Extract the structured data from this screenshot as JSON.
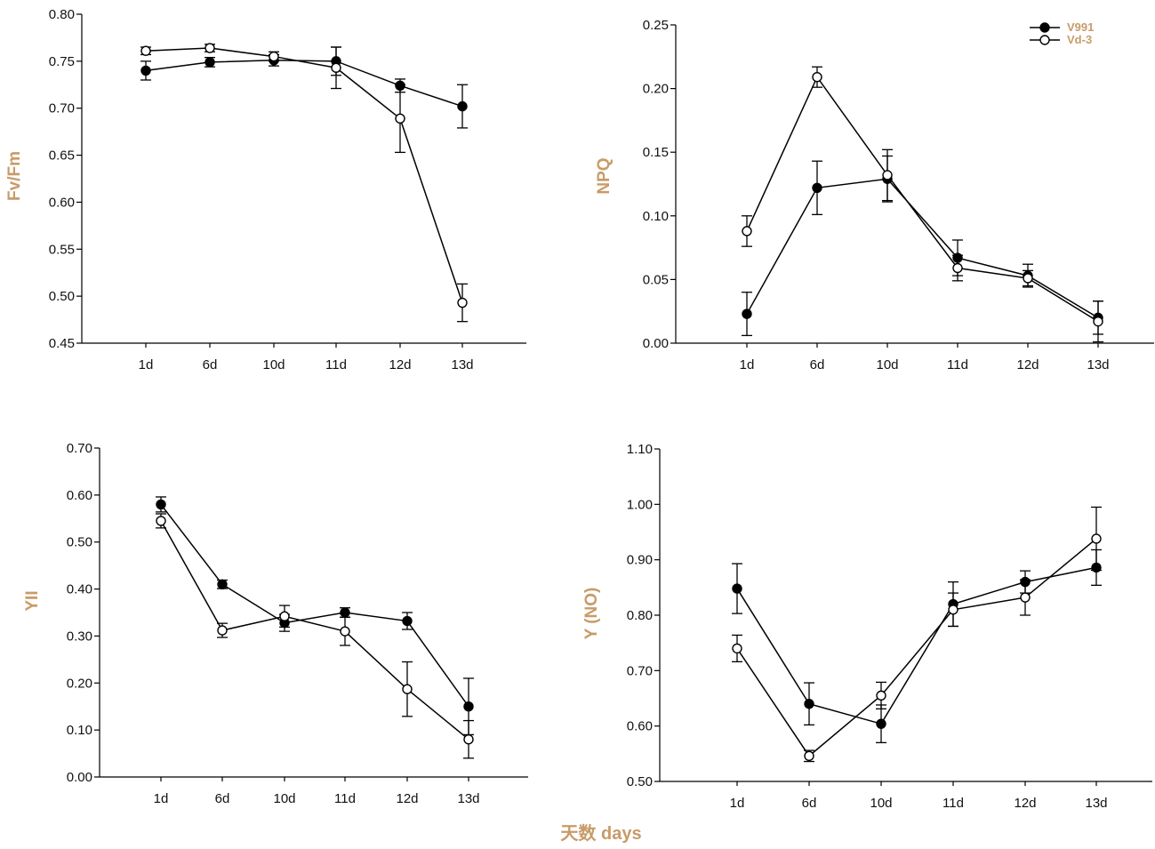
{
  "colors": {
    "label": "#c89b68",
    "line": "#000000"
  },
  "common_xlabel": "天数  days",
  "legend": {
    "items": [
      "V991",
      "Vd-3"
    ]
  },
  "chart_data": [
    {
      "type": "line",
      "ylabel": "Fv/Fm",
      "ylim": [
        0.45,
        0.8
      ],
      "yticks": [
        "0.45",
        "0.50",
        "0.55",
        "0.60",
        "0.65",
        "0.70",
        "0.75",
        "0.80"
      ],
      "categories": [
        "1d",
        "6d",
        "10d",
        "11d",
        "12d",
        "13d"
      ],
      "series": [
        {
          "name": "V991",
          "values": [
            0.74,
            0.749,
            0.751,
            0.75,
            0.724,
            0.702
          ],
          "errors": [
            0.01,
            0.005,
            0.006,
            0.015,
            0.007,
            0.023
          ]
        },
        {
          "name": "Vd-3",
          "values": [
            0.761,
            0.764,
            0.755,
            0.743,
            0.689,
            0.493
          ],
          "errors": [
            0.004,
            0.004,
            0.005,
            0.022,
            0.036,
            0.02
          ]
        }
      ]
    },
    {
      "type": "line",
      "ylabel": "NPQ",
      "ylim": [
        0.0,
        0.25
      ],
      "yticks": [
        "0.00",
        "0.05",
        "0.10",
        "0.15",
        "0.20",
        "0.25"
      ],
      "categories": [
        "1d",
        "6d",
        "10d",
        "11d",
        "12d",
        "13d"
      ],
      "series": [
        {
          "name": "V991",
          "values": [
            0.023,
            0.122,
            0.129,
            0.067,
            0.053,
            0.02
          ],
          "errors": [
            0.017,
            0.021,
            0.018,
            0.014,
            0.009,
            0.013
          ]
        },
        {
          "name": "Vd-3",
          "values": [
            0.088,
            0.209,
            0.132,
            0.059,
            0.051,
            0.017
          ],
          "errors": [
            0.012,
            0.008,
            0.02,
            0.01,
            0.006,
            0.016
          ]
        }
      ]
    },
    {
      "type": "line",
      "ylabel": "YII",
      "ylim": [
        0.0,
        0.7
      ],
      "yticks": [
        "0.00",
        "0.10",
        "0.20",
        "0.30",
        "0.40",
        "0.50",
        "0.60",
        "0.70"
      ],
      "categories": [
        "1d",
        "6d",
        "10d",
        "11d",
        "12d",
        "13d"
      ],
      "series": [
        {
          "name": "V991",
          "values": [
            0.58,
            0.41,
            0.328,
            0.35,
            0.332,
            0.15
          ],
          "errors": [
            0.016,
            0.009,
            0.018,
            0.01,
            0.018,
            0.06
          ]
        },
        {
          "name": "Vd-3",
          "values": [
            0.545,
            0.312,
            0.342,
            0.31,
            0.187,
            0.08
          ],
          "errors": [
            0.015,
            0.015,
            0.023,
            0.03,
            0.058,
            0.04
          ]
        }
      ]
    },
    {
      "type": "line",
      "ylabel": "Y (NO)",
      "ylim": [
        0.5,
        1.1
      ],
      "yticks": [
        "0.50",
        "0.60",
        "0.70",
        "0.80",
        "0.90",
        "1.00",
        "1.10"
      ],
      "categories": [
        "1d",
        "6d",
        "10d",
        "11d",
        "12d",
        "13d"
      ],
      "series": [
        {
          "name": "V991",
          "values": [
            0.848,
            0.64,
            0.604,
            0.82,
            0.86,
            0.886
          ],
          "errors": [
            0.045,
            0.038,
            0.034,
            0.04,
            0.02,
            0.032
          ]
        },
        {
          "name": "Vd-3",
          "values": [
            0.74,
            0.546,
            0.655,
            0.81,
            0.832,
            0.938
          ],
          "errors": [
            0.024,
            0.01,
            0.024,
            0.03,
            0.032,
            0.057
          ]
        }
      ]
    }
  ]
}
